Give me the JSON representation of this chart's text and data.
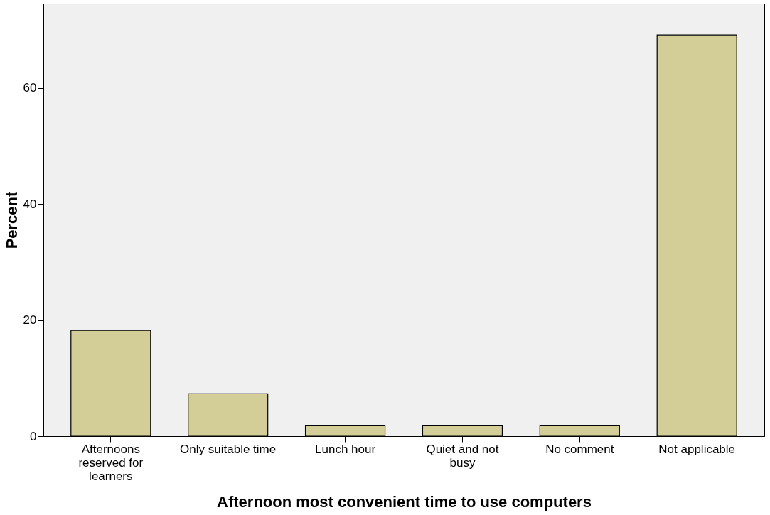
{
  "chart_data": {
    "type": "bar",
    "xlabel": "Afternoon most convenient time to use computers",
    "ylabel": "Percent",
    "categories": [
      "Afternoons reserved for learners",
      "Only suitable time",
      "Lunch hour",
      "Quiet and not busy",
      "No comment",
      "Not applicable"
    ],
    "values": [
      18.2,
      7.3,
      1.8,
      1.8,
      1.8,
      69.1
    ],
    "color": "#d3ce98",
    "ylim": [
      0,
      74.5
    ],
    "yticks": [
      0,
      20,
      40,
      60
    ],
    "grid": false
  }
}
